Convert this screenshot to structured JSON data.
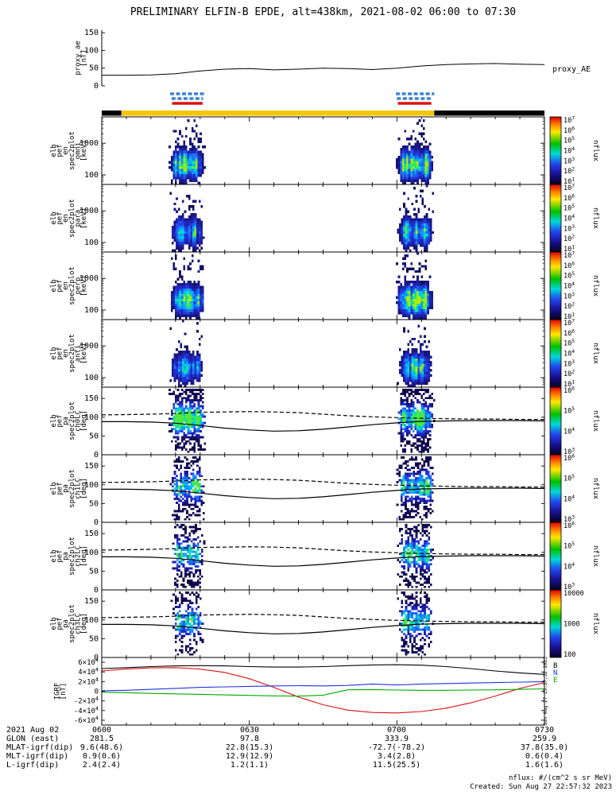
{
  "title": "PRELIMINARY ELFIN-B EPDE, alt=438km, 2021-08-02 06:00 to 07:30",
  "footer": {
    "units_note": "nflux: #/(cm^2 s sr MeV)",
    "created": "Created: Sun Aug 27 22:57:32 2023",
    "side_timestamp": "Sun Aug 27 15:57:32 2023"
  },
  "bottom_table": {
    "rows": [
      {
        "label": "2021 Aug 02",
        "values": [
          "0600",
          "0630",
          "0700",
          "0730"
        ]
      },
      {
        "label": "GLON (east)",
        "values": [
          "281.5",
          "97.8",
          "333.9",
          "259.9"
        ]
      },
      {
        "label": "MLAT-igrf(dip)",
        "values": [
          "9.6(48.6)",
          "22.8(15.3)",
          "-72.7(-78.2)",
          "37.8(35.0)"
        ]
      },
      {
        "label": "MLT-igrf(dip)",
        "values": [
          "0.9(0.6)",
          "12.9(12.9)",
          "3.4(2.8)",
          "0.6(0.4)"
        ]
      },
      {
        "label": "L-igrf(dip)",
        "values": [
          "2.4(2.4)",
          "1.2(1.1)",
          "11.5(25.5)",
          "1.6(1.6)"
        ]
      }
    ]
  },
  "colors": {
    "marker_blue": "#3b82d8",
    "marker_red": "#dd1111",
    "status_yellow": "#f5c500",
    "status_black": "#000000",
    "colorbar_gradient": [
      [
        0,
        "#dd0000"
      ],
      [
        0.12,
        "#ff8800"
      ],
      [
        0.22,
        "#ffe800"
      ],
      [
        0.4,
        "#00c000"
      ],
      [
        0.55,
        "#00d8d8"
      ],
      [
        0.7,
        "#2244ee"
      ],
      [
        0.85,
        "#181090"
      ],
      [
        1,
        "#05001e"
      ]
    ],
    "spectrogram_palette": [
      [
        0,
        "#0d0033"
      ],
      [
        0.15,
        "#1a1a8f"
      ],
      [
        0.3,
        "#2233dd"
      ],
      [
        0.45,
        "#1e78ff"
      ],
      [
        0.57,
        "#00b8ff"
      ],
      [
        0.67,
        "#00e0cc"
      ],
      [
        0.77,
        "#2ee65c"
      ],
      [
        0.87,
        "#9aee00"
      ],
      [
        0.94,
        "#ffe400"
      ],
      [
        1,
        "#ff3300"
      ]
    ]
  },
  "chart_data": [
    {
      "id": "proxy",
      "type": "line",
      "ylabel_lines": [
        "proxy_ae",
        "[nT]"
      ],
      "right_label": "proxy_AE",
      "ylim": [
        0,
        157
      ],
      "yticks": [
        0,
        50,
        100,
        150
      ],
      "x_step_min": 5,
      "series": [
        {
          "color": "#000000",
          "values": [
            30,
            30,
            31,
            34,
            42,
            47,
            49,
            45,
            47,
            50,
            49,
            46,
            50,
            56,
            60,
            62,
            63,
            61,
            60
          ]
        }
      ]
    },
    {
      "id": "availability",
      "type": "interval-bars",
      "rows": [
        {
          "color": "#3b82d8",
          "style": "dashed",
          "windows_min": [
            [
              13.9,
              21.0
            ],
            [
              59.8,
              67.6
            ]
          ]
        },
        {
          "color": "#3b82d8",
          "style": "dashed",
          "windows_min": [
            [
              14.2,
              20.6
            ],
            [
              60.0,
              67.2
            ]
          ]
        },
        {
          "color": "#dd1111",
          "style": "solid",
          "windows_min": [
            [
              14.3,
              20.5
            ],
            [
              60.2,
              67.0
            ]
          ]
        }
      ],
      "status_bar": {
        "segments": [
          {
            "color": "#000000",
            "t0": 0,
            "t1": 4.0
          },
          {
            "color": "#f5c500",
            "t0": 4.0,
            "t1": 67.6
          },
          {
            "color": "#000000",
            "t0": 67.6,
            "t1": 90
          }
        ]
      }
    },
    {
      "id": "en_omni",
      "type": "spectrogram",
      "scale": "log",
      "ylabel_lines": [
        "elb",
        "pef",
        "en",
        "spec2plot",
        "omni",
        "[keV]"
      ],
      "ylim": [
        50,
        6800
      ],
      "yticks": [
        1000,
        100
      ],
      "colorbar_ticks": [
        "10^7",
        "10^6",
        "10^5",
        "10^4",
        "10^3",
        "10^2",
        "10^1"
      ],
      "colorbar_label": "nflux",
      "bursts": [
        {
          "t_min": [
            13.6,
            20.8
          ],
          "intensity": 0.9
        },
        {
          "t_min": [
            59.8,
            67.3
          ],
          "intensity": 1.0
        }
      ]
    },
    {
      "id": "en_para",
      "type": "spectrogram",
      "scale": "log",
      "ylabel_lines": [
        "elb",
        "pef",
        "en",
        "spec2plot",
        "para",
        "[keV]"
      ],
      "ylim": [
        50,
        6800
      ],
      "yticks": [
        1000,
        100
      ],
      "colorbar_ticks": [
        "10^7",
        "10^6",
        "10^5",
        "10^4",
        "10^3",
        "10^2",
        "10^1"
      ],
      "colorbar_label": "nflux",
      "bursts": [
        {
          "t_min": [
            13.8,
            20.6
          ],
          "intensity": 0.62
        },
        {
          "t_min": [
            60.0,
            67.2
          ],
          "intensity": 0.7
        }
      ]
    },
    {
      "id": "en_perp",
      "type": "spectrogram",
      "scale": "log",
      "ylabel_lines": [
        "elb",
        "pef",
        "en",
        "spec2plot",
        "perp",
        "[keV]"
      ],
      "ylim": [
        50,
        6800
      ],
      "yticks": [
        1000,
        100
      ],
      "colorbar_ticks": [
        "10^7",
        "10^6",
        "10^5",
        "10^4",
        "10^3",
        "10^2",
        "10^1"
      ],
      "colorbar_label": "nflux",
      "bursts": [
        {
          "t_min": [
            13.6,
            20.8
          ],
          "intensity": 0.88
        },
        {
          "t_min": [
            59.8,
            67.3
          ],
          "intensity": 0.95
        }
      ]
    },
    {
      "id": "en_anti",
      "type": "spectrogram",
      "scale": "log",
      "ylabel_lines": [
        "elb",
        "pef",
        "en",
        "spec2plot",
        "anti",
        "[keV]"
      ],
      "ylim": [
        50,
        6800
      ],
      "yticks": [
        1000,
        100
      ],
      "colorbar_ticks": [
        "10^7",
        "10^6",
        "10^5",
        "10^4",
        "10^3",
        "10^2",
        "10^1"
      ],
      "colorbar_label": "nflux",
      "bursts": [
        {
          "t_min": [
            13.8,
            20.6
          ],
          "intensity": 0.6
        },
        {
          "t_min": [
            60.0,
            67.2
          ],
          "intensity": 0.75
        }
      ]
    },
    {
      "id": "pa_ch0",
      "type": "spectrogram",
      "scale": "linear",
      "ylabel_lines": [
        "elb",
        "pef",
        "pa",
        "spec2plot",
        "ch0LC",
        "[deg]"
      ],
      "ylim": [
        0,
        180
      ],
      "yticks": [
        0,
        50,
        100,
        150
      ],
      "colorbar_ticks": [
        "10^6",
        "10^5",
        "10^4",
        "10^3"
      ],
      "colorbar_label": "nflux",
      "bursts": [
        {
          "t_min": [
            13.6,
            21.0
          ],
          "intensity": 1.0
        },
        {
          "t_min": [
            59.8,
            67.5
          ],
          "intensity": 1.0
        }
      ],
      "overlay_lines": [
        {
          "style": "solid",
          "color": "#000000",
          "values": [
            88,
            88,
            87,
            84,
            78,
            71,
            66,
            63,
            64,
            68,
            74,
            80,
            85,
            89,
            90,
            91,
            91,
            91,
            90
          ]
        },
        {
          "style": "dashed",
          "color": "#000000",
          "values": [
            106,
            107,
            108,
            110,
            113,
            114,
            115,
            114,
            112,
            108,
            104,
            101,
            99,
            97,
            96,
            95,
            95,
            94,
            94
          ]
        }
      ]
    },
    {
      "id": "pa_ch1",
      "type": "spectrogram",
      "scale": "linear",
      "ylabel_lines": [
        "elb",
        "pef",
        "pa",
        "spec2plot",
        "ch1LC",
        "[deg]"
      ],
      "ylim": [
        0,
        180
      ],
      "yticks": [
        0,
        50,
        100,
        150
      ],
      "colorbar_ticks": [
        "10^6",
        "10^5",
        "10^4",
        "10^3"
      ],
      "colorbar_label": "nflux",
      "bursts": [
        {
          "t_min": [
            13.8,
            20.8
          ],
          "intensity": 0.8
        },
        {
          "t_min": [
            59.9,
            67.4
          ],
          "intensity": 0.9
        }
      ],
      "overlay_lines": [
        {
          "style": "solid",
          "color": "#000000",
          "values": [
            88,
            88,
            87,
            84,
            78,
            71,
            66,
            63,
            64,
            68,
            74,
            80,
            85,
            89,
            90,
            91,
            91,
            91,
            90
          ]
        },
        {
          "style": "dashed",
          "color": "#000000",
          "values": [
            106,
            107,
            108,
            110,
            113,
            114,
            115,
            114,
            112,
            108,
            104,
            101,
            99,
            97,
            96,
            95,
            95,
            94,
            94
          ]
        }
      ]
    },
    {
      "id": "pa_ch2",
      "type": "spectrogram",
      "scale": "linear",
      "ylabel_lines": [
        "elb",
        "pef",
        "pa",
        "spec2plot",
        "ch2LC",
        "[deg]"
      ],
      "ylim": [
        0,
        180
      ],
      "yticks": [
        0,
        50,
        100,
        150
      ],
      "colorbar_ticks": [
        "10^6",
        "10^5",
        "10^4",
        "10^3"
      ],
      "colorbar_label": "nflux",
      "bursts": [
        {
          "t_min": [
            13.9,
            20.7
          ],
          "intensity": 0.75
        },
        {
          "t_min": [
            60.0,
            67.3
          ],
          "intensity": 0.85
        }
      ],
      "overlay_lines": [
        {
          "style": "solid",
          "color": "#000000",
          "values": [
            88,
            88,
            87,
            84,
            78,
            71,
            66,
            63,
            64,
            68,
            74,
            80,
            85,
            89,
            90,
            91,
            91,
            91,
            90
          ]
        },
        {
          "style": "dashed",
          "color": "#000000",
          "values": [
            106,
            107,
            108,
            110,
            113,
            114,
            115,
            114,
            112,
            108,
            104,
            101,
            99,
            97,
            96,
            95,
            95,
            94,
            94
          ]
        }
      ]
    },
    {
      "id": "pa_ch3",
      "type": "spectrogram",
      "scale": "linear",
      "ylabel_lines": [
        "elb",
        "pef",
        "pa",
        "spec2plot",
        "ch3LC",
        "[deg]"
      ],
      "ylim": [
        0,
        180
      ],
      "yticks": [
        0,
        50,
        100,
        150
      ],
      "colorbar_ticks": [
        "10000",
        "1000",
        "100"
      ],
      "colorbar_label": "nflux",
      "bursts": [
        {
          "t_min": [
            14.0,
            20.6
          ],
          "intensity": 0.7
        },
        {
          "t_min": [
            60.0,
            67.2
          ],
          "intensity": 0.8
        }
      ],
      "overlay_lines": [
        {
          "style": "solid",
          "color": "#000000",
          "values": [
            88,
            88,
            87,
            84,
            78,
            71,
            66,
            63,
            64,
            68,
            74,
            80,
            85,
            89,
            90,
            91,
            91,
            91,
            90
          ]
        },
        {
          "style": "dashed",
          "color": "#000000",
          "values": [
            106,
            107,
            108,
            110,
            113,
            114,
            115,
            114,
            112,
            108,
            104,
            101,
            99,
            97,
            96,
            95,
            95,
            94,
            94
          ]
        }
      ]
    },
    {
      "id": "igrf",
      "type": "line",
      "ylabel_lines": [
        "IGRF",
        "[nT]"
      ],
      "ylim": [
        -70000,
        70000
      ],
      "ytick_vals": [
        60000,
        40000,
        20000,
        0,
        -20000,
        -40000,
        -60000
      ],
      "ytick_labels": [
        "6×10^4",
        "4×10^4",
        "2×10^4",
        "0",
        "-2×10^4",
        "-4×10^4",
        "-6×10^4"
      ],
      "series": [
        {
          "color": "#000000",
          "values": [
            47000,
            49000,
            51000,
            52500,
            53000,
            52500,
            51000,
            50000,
            50000,
            51000,
            53000,
            54500,
            55000,
            54000,
            51000,
            47000,
            42000,
            38000,
            35000
          ]
        },
        {
          "color": "#dd1111",
          "values": [
            42000,
            46000,
            48500,
            49000,
            46000,
            39000,
            26000,
            8000,
            -12000,
            -28000,
            -39000,
            -44000,
            -45000,
            -42000,
            -35000,
            -24000,
            -10000,
            6000,
            18000
          ]
        },
        {
          "color": "#2233dd",
          "values": [
            1000,
            2000,
            4000,
            6000,
            8000,
            9000,
            10000,
            11000,
            11500,
            11000,
            12000,
            15000,
            13000,
            15000,
            16000,
            17000,
            18000,
            19000,
            20000
          ]
        },
        {
          "color": "#00aa00",
          "values": [
            -2000,
            -3000,
            -4500,
            -5500,
            -6500,
            -7500,
            -8500,
            -9500,
            -10000,
            -8000,
            3000,
            3500,
            2500,
            2000,
            2000,
            2500,
            3000,
            4000,
            5000
          ]
        }
      ],
      "right_labels": [
        {
          "text": "B",
          "color": "#000000"
        },
        {
          "text": "N",
          "color": "#2233dd"
        },
        {
          "text": "E",
          "color": "#00aa00"
        }
      ]
    }
  ]
}
